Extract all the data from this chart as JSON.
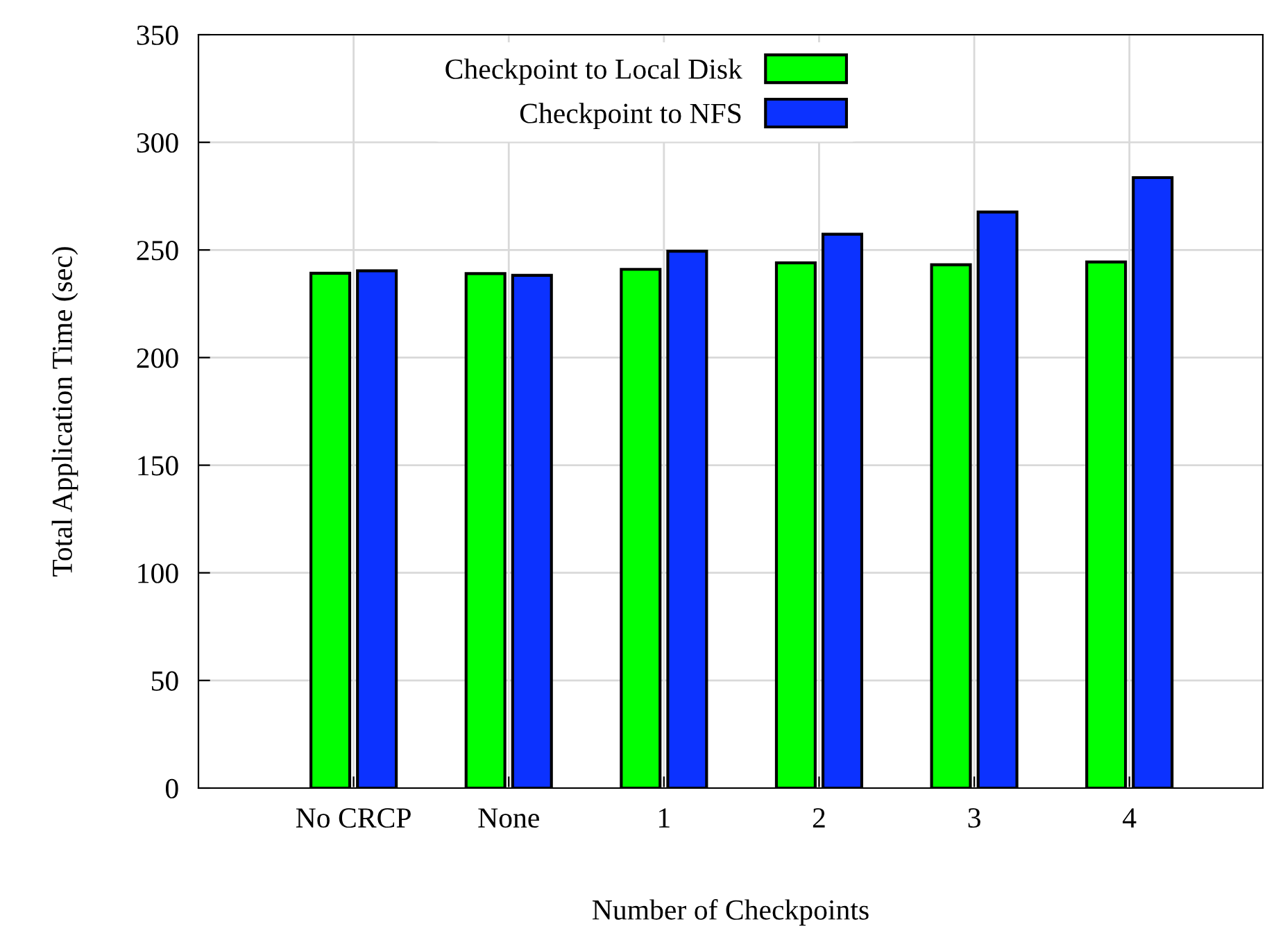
{
  "chart_data": {
    "type": "bar",
    "xlabel": "Number of Checkpoints",
    "ylabel": "Total Application Time (sec)",
    "categories": [
      "No CRCP",
      "None",
      "1",
      "2",
      "3",
      "4"
    ],
    "series": [
      {
        "name": "Checkpoint to Local Disk",
        "color": "#00ff00",
        "values": [
          239.2,
          239,
          241,
          244,
          243.1,
          244.4
        ]
      },
      {
        "name": "Checkpoint to NFS",
        "color": "#0c32ff",
        "values": [
          240.3,
          238.2,
          249.4,
          257.3,
          267.6,
          283.6
        ]
      }
    ],
    "ylim": [
      0,
      350
    ],
    "yticks": [
      0,
      50,
      100,
      150,
      200,
      250,
      300,
      350
    ],
    "grid": true,
    "legend": "top"
  }
}
